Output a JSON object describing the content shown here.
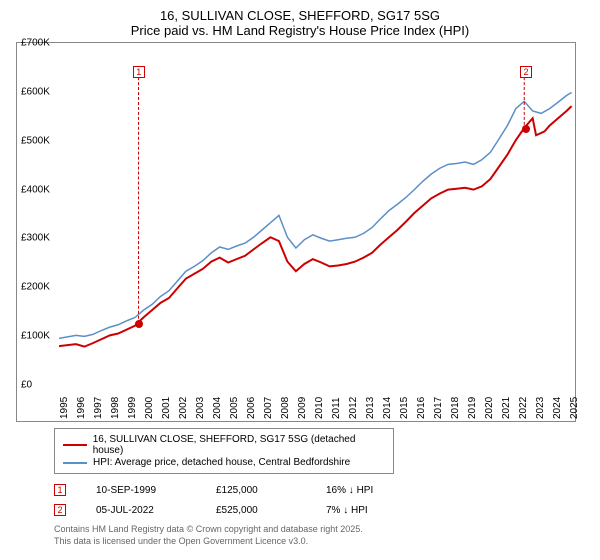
{
  "title_line1": "16, SULLIVAN CLOSE, SHEFFORD, SG17 5SG",
  "title_line2": "Price paid vs. HM Land Registry's House Price Index (HPI)",
  "chart": {
    "type": "line",
    "background_color": "#ffffff",
    "border_color": "#888888",
    "xlim": [
      1995,
      2025.5
    ],
    "ylim": [
      0,
      700
    ],
    "yticks": [
      0,
      100,
      200,
      300,
      400,
      500,
      600,
      700
    ],
    "ytick_labels": [
      "£0",
      "£100K",
      "£200K",
      "£300K",
      "£400K",
      "£500K",
      "£600K",
      "£700K"
    ],
    "xticks": [
      1995,
      1996,
      1997,
      1998,
      1999,
      2000,
      2001,
      2002,
      2003,
      2004,
      2005,
      2006,
      2007,
      2008,
      2009,
      2010,
      2011,
      2012,
      2013,
      2014,
      2015,
      2016,
      2017,
      2018,
      2019,
      2020,
      2021,
      2022,
      2023,
      2024,
      2025
    ],
    "series": [
      {
        "name": "price_paid",
        "label": "16, SULLIVAN CLOSE, SHEFFORD, SG17 5SG (detached house)",
        "color": "#cc0000",
        "line_width": 2,
        "data": [
          [
            1995,
            76
          ],
          [
            1995.5,
            78
          ],
          [
            1996,
            80
          ],
          [
            1996.5,
            75
          ],
          [
            1997,
            82
          ],
          [
            1997.5,
            90
          ],
          [
            1998,
            98
          ],
          [
            1998.5,
            102
          ],
          [
            1999,
            110
          ],
          [
            1999.5,
            118
          ],
          [
            1999.7,
            125
          ],
          [
            2000,
            135
          ],
          [
            2000.5,
            150
          ],
          [
            2001,
            165
          ],
          [
            2001.5,
            175
          ],
          [
            2002,
            195
          ],
          [
            2002.5,
            215
          ],
          [
            2003,
            225
          ],
          [
            2003.5,
            235
          ],
          [
            2004,
            250
          ],
          [
            2004.5,
            258
          ],
          [
            2005,
            248
          ],
          [
            2005.5,
            255
          ],
          [
            2006,
            262
          ],
          [
            2006.5,
            275
          ],
          [
            2007,
            288
          ],
          [
            2007.5,
            300
          ],
          [
            2008,
            292
          ],
          [
            2008.5,
            250
          ],
          [
            2009,
            230
          ],
          [
            2009.5,
            245
          ],
          [
            2010,
            255
          ],
          [
            2010.5,
            248
          ],
          [
            2011,
            240
          ],
          [
            2011.5,
            242
          ],
          [
            2012,
            245
          ],
          [
            2012.5,
            250
          ],
          [
            2013,
            258
          ],
          [
            2013.5,
            268
          ],
          [
            2014,
            285
          ],
          [
            2014.5,
            300
          ],
          [
            2015,
            315
          ],
          [
            2015.5,
            332
          ],
          [
            2016,
            350
          ],
          [
            2016.5,
            365
          ],
          [
            2017,
            380
          ],
          [
            2017.5,
            390
          ],
          [
            2018,
            398
          ],
          [
            2018.5,
            400
          ],
          [
            2019,
            402
          ],
          [
            2019.5,
            398
          ],
          [
            2020,
            405
          ],
          [
            2020.5,
            420
          ],
          [
            2021,
            445
          ],
          [
            2021.5,
            470
          ],
          [
            2022,
            500
          ],
          [
            2022.5,
            525
          ],
          [
            2023,
            545
          ],
          [
            2023.2,
            510
          ],
          [
            2023.7,
            518
          ],
          [
            2024,
            530
          ],
          [
            2024.5,
            545
          ],
          [
            2025,
            560
          ],
          [
            2025.3,
            570
          ]
        ]
      },
      {
        "name": "hpi",
        "label": "HPI: Average price, detached house, Central Bedfordshire",
        "color": "#5b8fc7",
        "line_width": 1.5,
        "data": [
          [
            1995,
            92
          ],
          [
            1995.5,
            95
          ],
          [
            1996,
            98
          ],
          [
            1996.5,
            96
          ],
          [
            1997,
            100
          ],
          [
            1997.5,
            108
          ],
          [
            1998,
            115
          ],
          [
            1998.5,
            120
          ],
          [
            1999,
            128
          ],
          [
            1999.5,
            135
          ],
          [
            2000,
            150
          ],
          [
            2000.5,
            162
          ],
          [
            2001,
            178
          ],
          [
            2001.5,
            190
          ],
          [
            2002,
            210
          ],
          [
            2002.5,
            230
          ],
          [
            2003,
            240
          ],
          [
            2003.5,
            252
          ],
          [
            2004,
            268
          ],
          [
            2004.5,
            280
          ],
          [
            2005,
            275
          ],
          [
            2005.5,
            282
          ],
          [
            2006,
            288
          ],
          [
            2006.5,
            300
          ],
          [
            2007,
            315
          ],
          [
            2007.5,
            330
          ],
          [
            2008,
            345
          ],
          [
            2008.5,
            300
          ],
          [
            2009,
            278
          ],
          [
            2009.5,
            295
          ],
          [
            2010,
            305
          ],
          [
            2010.5,
            298
          ],
          [
            2011,
            292
          ],
          [
            2011.5,
            295
          ],
          [
            2012,
            298
          ],
          [
            2012.5,
            300
          ],
          [
            2013,
            308
          ],
          [
            2013.5,
            320
          ],
          [
            2014,
            338
          ],
          [
            2014.5,
            355
          ],
          [
            2015,
            368
          ],
          [
            2015.5,
            382
          ],
          [
            2016,
            398
          ],
          [
            2016.5,
            415
          ],
          [
            2017,
            430
          ],
          [
            2017.5,
            442
          ],
          [
            2018,
            450
          ],
          [
            2018.5,
            452
          ],
          [
            2019,
            455
          ],
          [
            2019.5,
            450
          ],
          [
            2020,
            460
          ],
          [
            2020.5,
            475
          ],
          [
            2021,
            502
          ],
          [
            2021.5,
            530
          ],
          [
            2022,
            565
          ],
          [
            2022.5,
            580
          ],
          [
            2023,
            560
          ],
          [
            2023.5,
            555
          ],
          [
            2024,
            565
          ],
          [
            2024.5,
            578
          ],
          [
            2025,
            592
          ],
          [
            2025.3,
            598
          ]
        ]
      }
    ],
    "sale_markers": [
      {
        "id": "1",
        "x": 1999.7,
        "y": 125,
        "label_y": 640
      },
      {
        "id": "2",
        "x": 2022.5,
        "y": 525,
        "label_y": 640
      }
    ]
  },
  "legend": {
    "items": [
      {
        "color": "#cc0000",
        "label": "16, SULLIVAN CLOSE, SHEFFORD, SG17 5SG (detached house)"
      },
      {
        "color": "#5b8fc7",
        "label": "HPI: Average price, detached house, Central Bedfordshire"
      }
    ]
  },
  "transactions": [
    {
      "id": "1",
      "date": "10-SEP-1999",
      "price": "£125,000",
      "delta": "16% ↓ HPI"
    },
    {
      "id": "2",
      "date": "05-JUL-2022",
      "price": "£525,000",
      "delta": "7% ↓ HPI"
    }
  ],
  "footnote_line1": "Contains HM Land Registry data © Crown copyright and database right 2025.",
  "footnote_line2": "This data is licensed under the Open Government Licence v3.0."
}
